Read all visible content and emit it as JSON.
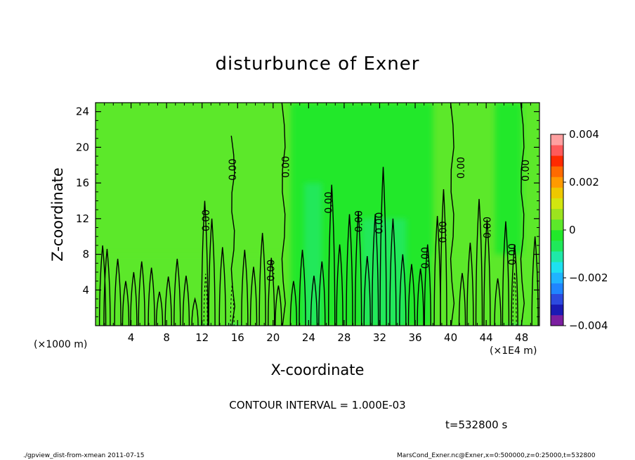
{
  "chart_data": {
    "type": "heatmap",
    "title": "disturbunce of Exner",
    "xlabel": "X-coordinate",
    "ylabel": "Z-coordinate",
    "x_unit_left": "(×1000 m)",
    "x_unit_right": "(×1E4 m)",
    "xlim": [
      0,
      50
    ],
    "ylim": [
      0,
      25
    ],
    "x_ticks": [
      4,
      8,
      12,
      16,
      20,
      24,
      28,
      32,
      36,
      40,
      44,
      48
    ],
    "y_ticks": [
      4,
      8,
      12,
      16,
      20,
      24
    ],
    "background_value": 0,
    "colorbar": {
      "range": [
        -0.004,
        0.004
      ],
      "labels": [
        "0.004",
        "0.002",
        "0",
        "−0.002",
        "−0.004"
      ],
      "label_values": [
        0.004,
        0.002,
        0,
        -0.002,
        -0.004
      ],
      "colors": [
        "#7b1fa0",
        "#1a1ab4",
        "#2c4adf",
        "#1f85ff",
        "#1fb4ff",
        "#1ee0f0",
        "#1fe8a8",
        "#20e85a",
        "#22e82a",
        "#5ce82a",
        "#9ce31e",
        "#d2e60f",
        "#eec800",
        "#ff9a00",
        "#ff6a00",
        "#ff2a00",
        "#ff5a5a",
        "#ffa0a0"
      ]
    },
    "contour_label": "0.00",
    "contour_interval_text": "CONTOUR INTERVAL = 1.000E-03",
    "time_text": "t=532800 s",
    "regions": [
      {
        "x": [
          0,
          50
        ],
        "z": [
          0,
          25
        ],
        "value": 0
      },
      {
        "x": [
          22,
          38
        ],
        "z": [
          0,
          25
        ],
        "value": -0.0003
      },
      {
        "x": [
          45,
          48
        ],
        "z": [
          0,
          25
        ],
        "value": -0.0003
      },
      {
        "x": [
          23.5,
          25.5
        ],
        "z": [
          0,
          16
        ],
        "value": -0.0006
      },
      {
        "x": [
          30,
          35
        ],
        "z": [
          0,
          12
        ],
        "value": -0.0005
      },
      {
        "x": [
          11.5,
          13
        ],
        "z": [
          0,
          7
        ],
        "value": -0.0008
      },
      {
        "x": [
          14.8,
          16.4
        ],
        "z": [
          0,
          5
        ],
        "value": -0.0009
      },
      {
        "x": [
          46.5,
          48
        ],
        "z": [
          0,
          7
        ],
        "value": -0.0009
      },
      {
        "x": [
          0,
          21
        ],
        "z": [
          0,
          8
        ],
        "value": 0.0004
      },
      {
        "x": [
          38,
          50
        ],
        "z": [
          0,
          8
        ],
        "value": 0.0004
      }
    ],
    "contour_label_positions": [
      {
        "x": 15.5,
        "z": 17.5
      },
      {
        "x": 21.5,
        "z": 17.8
      },
      {
        "x": 12.5,
        "z": 11.8
      },
      {
        "x": 19.8,
        "z": 6.2
      },
      {
        "x": 26.3,
        "z": 13.8
      },
      {
        "x": 29.7,
        "z": 11.7
      },
      {
        "x": 32,
        "z": 11.5
      },
      {
        "x": 37.2,
        "z": 7.6
      },
      {
        "x": 39.2,
        "z": 10.5
      },
      {
        "x": 41.2,
        "z": 17.7
      },
      {
        "x": 44.2,
        "z": 11
      },
      {
        "x": 47,
        "z": 8
      },
      {
        "x": 48.5,
        "z": 17.4
      }
    ],
    "main_contours": [
      {
        "x": 15.6,
        "top": 21.3
      },
      {
        "x": 21.3,
        "top": 25
      },
      {
        "x": 40.3,
        "top": 25
      },
      {
        "x": 48.2,
        "top": 25
      }
    ],
    "plumes": [
      {
        "x": 0.8,
        "top": 9
      },
      {
        "x": 1.3,
        "top": 8.6
      },
      {
        "x": 2.5,
        "top": 7.5
      },
      {
        "x": 3.4,
        "top": 5
      },
      {
        "x": 4.3,
        "top": 6
      },
      {
        "x": 5.2,
        "top": 7.2
      },
      {
        "x": 6.3,
        "top": 6.5
      },
      {
        "x": 7.2,
        "top": 3.8
      },
      {
        "x": 8.2,
        "top": 5.5
      },
      {
        "x": 9.2,
        "top": 7.5
      },
      {
        "x": 10.2,
        "top": 5.6
      },
      {
        "x": 11.2,
        "top": 3
      },
      {
        "x": 12.3,
        "top": 14
      },
      {
        "x": 13.1,
        "top": 12
      },
      {
        "x": 14.3,
        "top": 8.8
      },
      {
        "x": 16.8,
        "top": 8.5
      },
      {
        "x": 17.8,
        "top": 6.6
      },
      {
        "x": 18.8,
        "top": 10.4
      },
      {
        "x": 19.8,
        "top": 7.6
      },
      {
        "x": 20.6,
        "top": 4.5
      },
      {
        "x": 22.3,
        "top": 5
      },
      {
        "x": 23.3,
        "top": 8.5
      },
      {
        "x": 24.6,
        "top": 5.6
      },
      {
        "x": 25.5,
        "top": 7.2
      },
      {
        "x": 26.6,
        "top": 15.8
      },
      {
        "x": 27.5,
        "top": 9.1
      },
      {
        "x": 28.6,
        "top": 12.5
      },
      {
        "x": 29.6,
        "top": 12.8
      },
      {
        "x": 30.6,
        "top": 7.8
      },
      {
        "x": 31.5,
        "top": 12.5
      },
      {
        "x": 32.4,
        "top": 17.8
      },
      {
        "x": 33.5,
        "top": 12
      },
      {
        "x": 34.6,
        "top": 8
      },
      {
        "x": 35.6,
        "top": 6.9
      },
      {
        "x": 36.6,
        "top": 6.4
      },
      {
        "x": 37.4,
        "top": 9.1
      },
      {
        "x": 38.5,
        "top": 12.3
      },
      {
        "x": 39.2,
        "top": 15.3
      },
      {
        "x": 41.3,
        "top": 5.9
      },
      {
        "x": 42.2,
        "top": 9.3
      },
      {
        "x": 43.2,
        "top": 14.2
      },
      {
        "x": 44.1,
        "top": 11.9
      },
      {
        "x": 45.3,
        "top": 5.3
      },
      {
        "x": 46.2,
        "top": 11.7
      },
      {
        "x": 47.2,
        "top": 9.1
      },
      {
        "x": 49.5,
        "top": 10
      }
    ],
    "dashed_contours": [
      {
        "x": 12.4,
        "top": 5.8
      },
      {
        "x": 15.4,
        "top": 4.8
      },
      {
        "x": 47.2,
        "top": 6
      }
    ]
  },
  "footer": {
    "left": "./gpview_dist-from-xmean  2011-07-15",
    "right": "MarsCond_Exner.nc@Exner,x=0:500000,z=0:25000,t=532800"
  }
}
